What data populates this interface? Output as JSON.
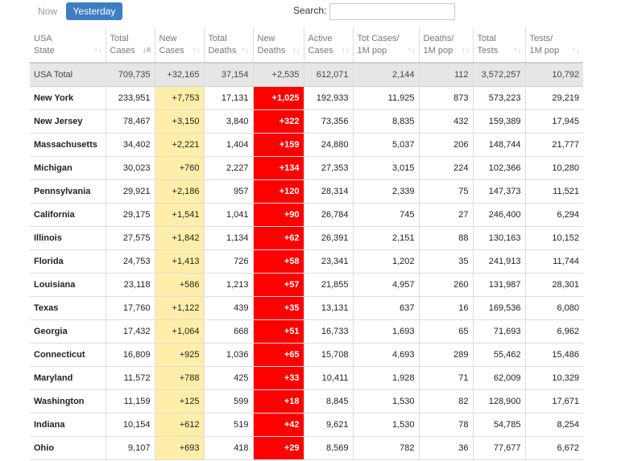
{
  "toolbar": {
    "now_label": "Now",
    "yesterday_label": "Yesterday",
    "search_label": "Search:",
    "search_value": ""
  },
  "colors": {
    "active_tab": "#3e7ec2",
    "new_cases_bg": "#ffeeaa",
    "new_deaths_bg": "#ff0000",
    "total_row_bg": "#e6e6e6"
  },
  "table": {
    "headers": [
      {
        "line1": "USA",
        "line2": "State"
      },
      {
        "line1": "Total",
        "line2": "Cases"
      },
      {
        "line1": "New",
        "line2": "Cases"
      },
      {
        "line1": "Total",
        "line2": "Deaths"
      },
      {
        "line1": "New",
        "line2": "Deaths"
      },
      {
        "line1": "Active",
        "line2": "Cases"
      },
      {
        "line1": "Tot Cases/",
        "line2": "1M pop"
      },
      {
        "line1": "Deaths/",
        "line2": "1M pop"
      },
      {
        "line1": "Total",
        "line2": "Tests"
      },
      {
        "line1": "Tests/",
        "line2": "1M pop"
      }
    ],
    "sort_icon": "sort-icon",
    "sorted_desc_icon": "sort-desc-icon",
    "total_row": [
      "USA Total",
      "709,735",
      "+32,165",
      "37,154",
      "+2,535",
      "612,071",
      "2,144",
      "112",
      "3,572,257",
      "10,792"
    ],
    "rows": [
      [
        "New York",
        "233,951",
        "+7,753",
        "17,131",
        "+1,025",
        "192,933",
        "11,925",
        "873",
        "573,223",
        "29,219"
      ],
      [
        "New Jersey",
        "78,467",
        "+3,150",
        "3,840",
        "+322",
        "73,356",
        "8,835",
        "432",
        "159,389",
        "17,945"
      ],
      [
        "Massachusetts",
        "34,402",
        "+2,221",
        "1,404",
        "+159",
        "24,880",
        "5,037",
        "206",
        "148,744",
        "21,777"
      ],
      [
        "Michigan",
        "30,023",
        "+760",
        "2,227",
        "+134",
        "27,353",
        "3,015",
        "224",
        "102,366",
        "10,280"
      ],
      [
        "Pennsylvania",
        "29,921",
        "+2,186",
        "957",
        "+120",
        "28,314",
        "2,339",
        "75",
        "147,373",
        "11,521"
      ],
      [
        "California",
        "29,175",
        "+1,541",
        "1,041",
        "+90",
        "26,784",
        "745",
        "27",
        "246,400",
        "6,294"
      ],
      [
        "Illinois",
        "27,575",
        "+1,842",
        "1,134",
        "+62",
        "26,391",
        "2,151",
        "88",
        "130,163",
        "10,152"
      ],
      [
        "Florida",
        "24,753",
        "+1,413",
        "726",
        "+58",
        "23,341",
        "1,202",
        "35",
        "241,913",
        "11,744"
      ],
      [
        "Louisiana",
        "23,118",
        "+586",
        "1,213",
        "+57",
        "21,855",
        "4,957",
        "260",
        "131,987",
        "28,301"
      ],
      [
        "Texas",
        "17,760",
        "+1,122",
        "439",
        "+35",
        "13,131",
        "637",
        "16",
        "169,536",
        "6,080"
      ],
      [
        "Georgia",
        "17,432",
        "+1,064",
        "668",
        "+51",
        "16,733",
        "1,693",
        "65",
        "71,693",
        "6,962"
      ],
      [
        "Connecticut",
        "16,809",
        "+925",
        "1,036",
        "+65",
        "15,708",
        "4,693",
        "289",
        "55,462",
        "15,486"
      ],
      [
        "Maryland",
        "11,572",
        "+788",
        "425",
        "+33",
        "10,411",
        "1,928",
        "71",
        "62,009",
        "10,329"
      ],
      [
        "Washington",
        "11,159",
        "+125",
        "599",
        "+18",
        "8,845",
        "1,530",
        "82",
        "128,900",
        "17,671"
      ],
      [
        "Indiana",
        "10,154",
        "+612",
        "519",
        "+42",
        "9,621",
        "1,530",
        "78",
        "54,785",
        "8,254"
      ],
      [
        "Ohio",
        "9,107",
        "+693",
        "418",
        "+29",
        "8,569",
        "782",
        "36",
        "77,677",
        "6,672"
      ]
    ]
  }
}
